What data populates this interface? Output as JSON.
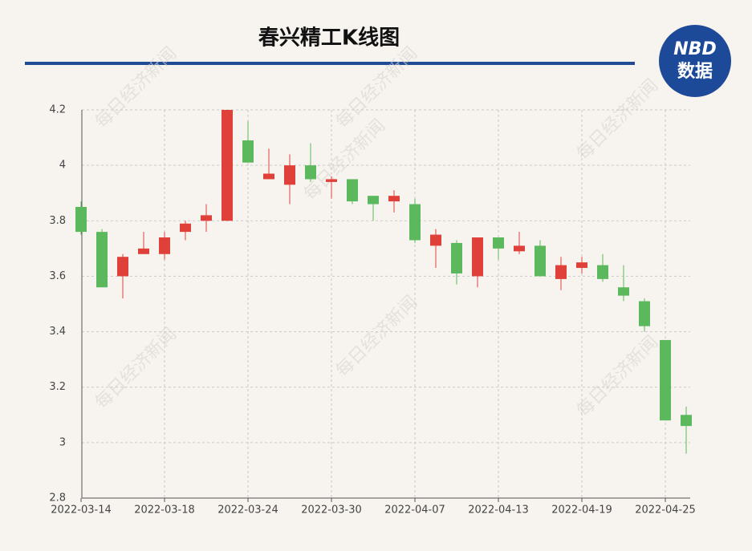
{
  "chart_data": {
    "type": "candlestick",
    "title": "春兴精工K线图",
    "logo": {
      "top": "NBD",
      "bottom": "数据"
    },
    "watermark": "每日经济新闻",
    "categories": [
      "2022-03-14",
      null,
      null,
      null,
      "2022-03-18",
      null,
      null,
      null,
      "2022-03-24",
      null,
      null,
      null,
      "2022-03-30",
      null,
      null,
      null,
      "2022-04-07",
      null,
      null,
      null,
      "2022-04-13",
      null,
      null,
      null,
      "2022-04-19",
      null,
      null,
      null,
      "2022-04-25",
      null
    ],
    "open": [
      3.85,
      3.76,
      3.6,
      3.68,
      3.68,
      3.76,
      3.8,
      3.8,
      4.09,
      3.95,
      3.93,
      4.0,
      3.94,
      3.95,
      3.89,
      3.87,
      3.86,
      3.71,
      3.72,
      3.6,
      3.74,
      3.69,
      3.71,
      3.59,
      3.63,
      3.64,
      3.56,
      3.51,
      3.37,
      3.1
    ],
    "high": [
      3.87,
      3.77,
      3.68,
      3.76,
      3.76,
      3.8,
      3.86,
      4.2,
      4.16,
      4.06,
      4.04,
      4.08,
      3.96,
      3.95,
      3.89,
      3.91,
      3.88,
      3.77,
      3.73,
      3.74,
      3.74,
      3.76,
      3.73,
      3.67,
      3.67,
      3.68,
      3.64,
      3.52,
      3.37,
      3.13
    ],
    "low": [
      3.75,
      3.56,
      3.52,
      3.68,
      3.66,
      3.73,
      3.76,
      3.8,
      4.01,
      3.95,
      3.86,
      3.94,
      3.88,
      3.86,
      3.8,
      3.83,
      3.72,
      3.63,
      3.57,
      3.56,
      3.66,
      3.68,
      3.6,
      3.55,
      3.61,
      3.58,
      3.51,
      3.4,
      3.08,
      2.96
    ],
    "close": [
      3.76,
      3.56,
      3.67,
      3.7,
      3.74,
      3.79,
      3.82,
      4.2,
      4.01,
      3.97,
      4.0,
      3.95,
      3.95,
      3.87,
      3.86,
      3.89,
      3.73,
      3.75,
      3.61,
      3.74,
      3.7,
      3.71,
      3.6,
      3.64,
      3.65,
      3.59,
      3.53,
      3.42,
      3.08,
      3.06
    ],
    "up_color": "#e0403a",
    "down_color": "#5cb85c",
    "ylim": [
      2.8,
      4.2
    ],
    "yticks": [
      2.8,
      3,
      3.2,
      3.4,
      3.6,
      3.8,
      4,
      4.2
    ],
    "grid": true
  }
}
